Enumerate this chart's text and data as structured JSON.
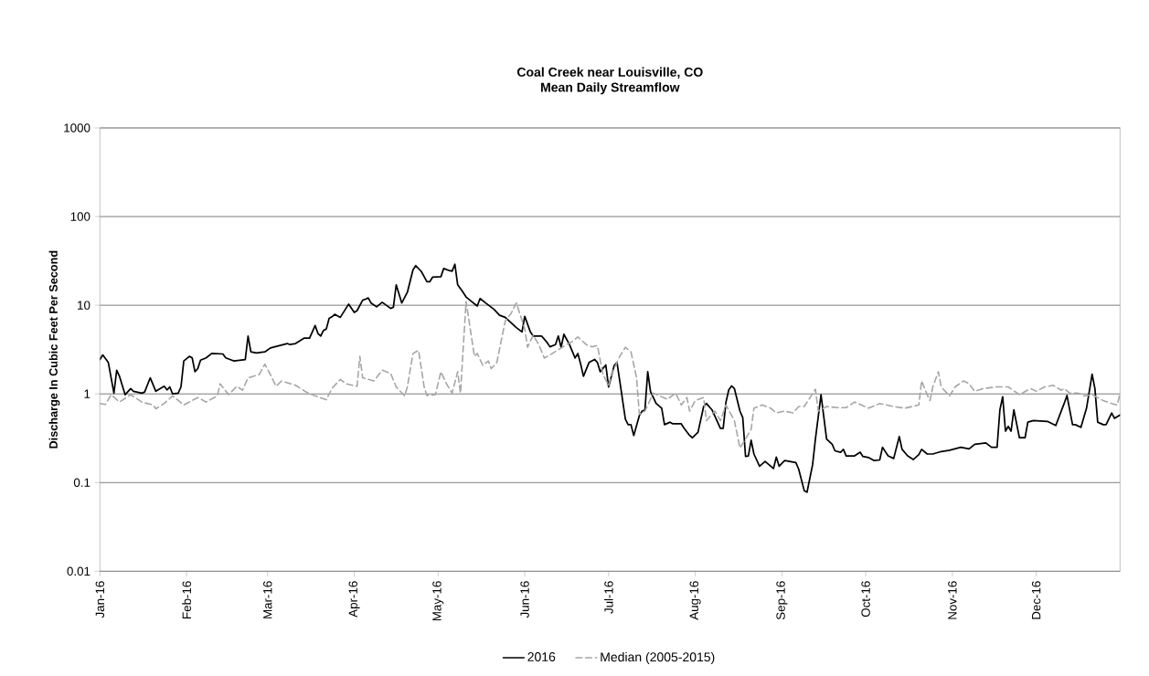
{
  "chart_data": {
    "type": "line",
    "title": "Coal Creek near Louisville, CO\nMean Daily Streamflow",
    "ylabel": "Discharge In Cubic Feet Per Second",
    "xlim": [
      "2016-01-01",
      "2016-12-31"
    ],
    "xticks": [
      {
        "value": "2016-01-01",
        "label": "Jan-16"
      },
      {
        "value": "2016-02-01",
        "label": "Feb-16"
      },
      {
        "value": "2016-03-01",
        "label": "Mar-16"
      },
      {
        "value": "2016-04-01",
        "label": "Apr-16"
      },
      {
        "value": "2016-05-01",
        "label": "May-16"
      },
      {
        "value": "2016-06-01",
        "label": "Jun-16"
      },
      {
        "value": "2016-07-01",
        "label": "Jul-16"
      },
      {
        "value": "2016-08-01",
        "label": "Aug-16"
      },
      {
        "value": "2016-09-01",
        "label": "Sep-16"
      },
      {
        "value": "2016-10-01",
        "label": "Oct-16"
      },
      {
        "value": "2016-11-01",
        "label": "Nov-16"
      },
      {
        "value": "2016-12-01",
        "label": "Dec-16"
      }
    ],
    "ylim": [
      0.01,
      1000
    ],
    "yticks": [
      0.01,
      0.1,
      1,
      10,
      100,
      1000
    ],
    "log": "y",
    "grid": "y",
    "legend": "bottom",
    "marker": "none",
    "series": [
      {
        "name": "2016",
        "color": "#000000",
        "line_style": "solid",
        "x": [
          "2016-01-01",
          "2016-01-02",
          "2016-01-04",
          "2016-01-06",
          "2016-01-07",
          "2016-01-08",
          "2016-01-10",
          "2016-01-12",
          "2016-01-13",
          "2016-01-16",
          "2016-01-17",
          "2016-01-19",
          "2016-01-21",
          "2016-01-24",
          "2016-01-25",
          "2016-01-26",
          "2016-01-27",
          "2016-01-29",
          "2016-01-30",
          "2016-01-31",
          "2016-02-02",
          "2016-02-03",
          "2016-02-04",
          "2016-02-05",
          "2016-02-06",
          "2016-02-08",
          "2016-02-10",
          "2016-02-14",
          "2016-02-15",
          "2016-02-18",
          "2016-02-22",
          "2016-02-23",
          "2016-02-24",
          "2016-02-26",
          "2016-02-29",
          "2016-03-02",
          "2016-03-08",
          "2016-03-09",
          "2016-03-11",
          "2016-03-14",
          "2016-03-16",
          "2016-03-18",
          "2016-03-19",
          "2016-03-20",
          "2016-03-21",
          "2016-03-22",
          "2016-03-23",
          "2016-03-24",
          "2016-03-25",
          "2016-03-27",
          "2016-03-30",
          "2016-04-01",
          "2016-04-02",
          "2016-04-04",
          "2016-04-05",
          "2016-04-06",
          "2016-04-07",
          "2016-04-09",
          "2016-04-11",
          "2016-04-14",
          "2016-04-15",
          "2016-04-16",
          "2016-04-18",
          "2016-04-20",
          "2016-04-22",
          "2016-04-23",
          "2016-04-25",
          "2016-04-27",
          "2016-04-28",
          "2016-04-29",
          "2016-05-02",
          "2016-05-03",
          "2016-05-05",
          "2016-05-06",
          "2016-05-07",
          "2016-05-08",
          "2016-05-10",
          "2016-05-11",
          "2016-05-13",
          "2016-05-15",
          "2016-05-16",
          "2016-05-18",
          "2016-05-21",
          "2016-05-23",
          "2016-05-25",
          "2016-05-29",
          "2016-05-31",
          "2016-06-01",
          "2016-06-03",
          "2016-06-04",
          "2016-06-07",
          "2016-06-09",
          "2016-06-10",
          "2016-06-12",
          "2016-06-13",
          "2016-06-14",
          "2016-06-15",
          "2016-06-17",
          "2016-06-19",
          "2016-06-20",
          "2016-06-21",
          "2016-06-22",
          "2016-06-24",
          "2016-06-26",
          "2016-06-27",
          "2016-06-28",
          "2016-06-30",
          "2016-07-01",
          "2016-07-03",
          "2016-07-04",
          "2016-07-05",
          "2016-07-07",
          "2016-07-08",
          "2016-07-09",
          "2016-07-10",
          "2016-07-12",
          "2016-07-13",
          "2016-07-14",
          "2016-07-15",
          "2016-07-16",
          "2016-07-18",
          "2016-07-20",
          "2016-07-21",
          "2016-07-23",
          "2016-07-24",
          "2016-07-27",
          "2016-07-28",
          "2016-07-30",
          "2016-07-31",
          "2016-08-02",
          "2016-08-04",
          "2016-08-05",
          "2016-08-07",
          "2016-08-10",
          "2016-08-11",
          "2016-08-12",
          "2016-08-13",
          "2016-08-14",
          "2016-08-15",
          "2016-08-17",
          "2016-08-18",
          "2016-08-19",
          "2016-08-20",
          "2016-08-21",
          "2016-08-22",
          "2016-08-24",
          "2016-08-26",
          "2016-08-29",
          "2016-08-30",
          "2016-08-31",
          "2016-09-02",
          "2016-09-06",
          "2016-09-07",
          "2016-09-09",
          "2016-09-10",
          "2016-09-12",
          "2016-09-13",
          "2016-09-15",
          "2016-09-17",
          "2016-09-19",
          "2016-09-20",
          "2016-09-22",
          "2016-09-23",
          "2016-09-24",
          "2016-09-27",
          "2016-09-29",
          "2016-09-30",
          "2016-10-02",
          "2016-10-04",
          "2016-10-06",
          "2016-10-07",
          "2016-10-09",
          "2016-10-11",
          "2016-10-13",
          "2016-10-14",
          "2016-10-16",
          "2016-10-18",
          "2016-10-20",
          "2016-10-21",
          "2016-10-23",
          "2016-10-25",
          "2016-10-28",
          "2016-10-31",
          "2016-11-04",
          "2016-11-07",
          "2016-11-09",
          "2016-11-13",
          "2016-11-15",
          "2016-11-17",
          "2016-11-18",
          "2016-11-19",
          "2016-11-20",
          "2016-11-21",
          "2016-11-22",
          "2016-11-23",
          "2016-11-25",
          "2016-11-27",
          "2016-11-28",
          "2016-11-30",
          "2016-12-05",
          "2016-12-08",
          "2016-12-11",
          "2016-12-12",
          "2016-12-14",
          "2016-12-15",
          "2016-12-17",
          "2016-12-19",
          "2016-12-21",
          "2016-12-22",
          "2016-12-23",
          "2016-12-25",
          "2016-12-26",
          "2016-12-28",
          "2016-12-29",
          "2016-12-31"
        ],
        "values": [
          2.44,
          2.75,
          2.26,
          1.02,
          1.85,
          1.58,
          0.98,
          1.15,
          1.07,
          1.02,
          1.05,
          1.52,
          1.07,
          1.22,
          1.11,
          1.2,
          1.0,
          1.02,
          1.2,
          2.35,
          2.65,
          2.55,
          1.78,
          1.93,
          2.4,
          2.55,
          2.86,
          2.82,
          2.55,
          2.35,
          2.44,
          4.5,
          2.98,
          2.9,
          2.98,
          3.3,
          3.7,
          3.6,
          3.7,
          4.25,
          4.25,
          5.9,
          4.8,
          4.5,
          5.2,
          5.4,
          7.1,
          7.4,
          7.9,
          7.3,
          10.3,
          8.3,
          8.7,
          11.4,
          11.7,
          12.1,
          10.6,
          9.6,
          10.8,
          9.2,
          9.5,
          17,
          10.6,
          14,
          25,
          28,
          24,
          18.4,
          18.4,
          20.7,
          21,
          26,
          24.6,
          24.2,
          29,
          17,
          13.9,
          12.4,
          11,
          9.8,
          11.9,
          10.6,
          9.0,
          7.7,
          7.3,
          5.6,
          5.0,
          7.5,
          5.0,
          4.5,
          4.5,
          3.8,
          3.4,
          3.6,
          4.5,
          3.35,
          4.7,
          3.6,
          2.54,
          2.86,
          2.17,
          1.58,
          2.26,
          2.45,
          2.26,
          1.78,
          2.12,
          1.2,
          2.09,
          2.26,
          1.4,
          0.52,
          0.45,
          0.45,
          0.34,
          0.57,
          0.64,
          0.66,
          1.78,
          1.06,
          0.78,
          0.69,
          0.45,
          0.48,
          0.46,
          0.46,
          0.41,
          0.34,
          0.32,
          0.37,
          0.72,
          0.78,
          0.66,
          0.41,
          0.41,
          0.81,
          1.11,
          1.23,
          1.15,
          0.64,
          0.54,
          0.197,
          0.2,
          0.3,
          0.21,
          0.153,
          0.173,
          0.144,
          0.194,
          0.153,
          0.177,
          0.168,
          0.142,
          0.081,
          0.078,
          0.16,
          0.31,
          0.98,
          0.31,
          0.27,
          0.228,
          0.22,
          0.237,
          0.2,
          0.2,
          0.22,
          0.197,
          0.192,
          0.177,
          0.18,
          0.25,
          0.2,
          0.187,
          0.33,
          0.237,
          0.2,
          0.182,
          0.207,
          0.237,
          0.21,
          0.21,
          0.224,
          0.232,
          0.25,
          0.24,
          0.27,
          0.28,
          0.25,
          0.25,
          0.66,
          0.93,
          0.38,
          0.43,
          0.38,
          0.66,
          0.32,
          0.32,
          0.48,
          0.5,
          0.49,
          0.44,
          0.78,
          0.96,
          0.45,
          0.45,
          0.42,
          0.69,
          1.67,
          1.15,
          0.48,
          0.45,
          0.45,
          0.61,
          0.53,
          0.58
        ]
      },
      {
        "name": "Median (2005-2015)",
        "color": "#a6a6a6",
        "line_style": "dashed",
        "x": [
          "2016-01-01",
          "2016-01-03",
          "2016-01-05",
          "2016-01-08",
          "2016-01-12",
          "2016-01-16",
          "2016-01-20",
          "2016-01-21",
          "2016-01-24",
          "2016-01-27",
          "2016-01-31",
          "2016-02-05",
          "2016-02-08",
          "2016-02-12",
          "2016-02-13",
          "2016-02-16",
          "2016-02-19",
          "2016-02-21",
          "2016-02-23",
          "2016-02-27",
          "2016-02-29",
          "2016-03-02",
          "2016-03-04",
          "2016-03-06",
          "2016-03-11",
          "2016-03-15",
          "2016-03-18",
          "2016-03-22",
          "2016-03-24",
          "2016-03-27",
          "2016-03-29",
          "2016-04-02",
          "2016-04-03",
          "2016-04-04",
          "2016-04-08",
          "2016-04-11",
          "2016-04-14",
          "2016-04-16",
          "2016-04-19",
          "2016-04-20",
          "2016-04-22",
          "2016-04-24",
          "2016-04-26",
          "2016-04-27",
          "2016-04-30",
          "2016-05-02",
          "2016-05-04",
          "2016-05-06",
          "2016-05-08",
          "2016-05-09",
          "2016-05-11",
          "2016-05-14",
          "2016-05-15",
          "2016-05-17",
          "2016-05-19",
          "2016-05-20",
          "2016-05-22",
          "2016-05-25",
          "2016-05-27",
          "2016-05-29",
          "2016-06-01",
          "2016-06-02",
          "2016-06-04",
          "2016-06-06",
          "2016-06-08",
          "2016-06-10",
          "2016-06-13",
          "2016-06-16",
          "2016-06-18",
          "2016-06-20",
          "2016-06-23",
          "2016-06-25",
          "2016-06-27",
          "2016-06-29",
          "2016-07-01",
          "2016-07-02",
          "2016-07-05",
          "2016-07-07",
          "2016-07-09",
          "2016-07-11",
          "2016-07-12",
          "2016-07-14",
          "2016-07-17",
          "2016-07-22",
          "2016-07-25",
          "2016-07-27",
          "2016-07-29",
          "2016-07-30",
          "2016-08-01",
          "2016-08-04",
          "2016-08-05",
          "2016-08-08",
          "2016-08-10",
          "2016-08-12",
          "2016-08-15",
          "2016-08-17",
          "2016-08-19",
          "2016-08-21",
          "2016-08-22",
          "2016-08-25",
          "2016-08-28",
          "2016-08-30",
          "2016-09-02",
          "2016-09-05",
          "2016-09-07",
          "2016-09-09",
          "2016-09-13",
          "2016-09-14",
          "2016-09-17",
          "2016-09-21",
          "2016-09-24",
          "2016-09-27",
          "2016-10-02",
          "2016-10-06",
          "2016-10-11",
          "2016-10-15",
          "2016-10-20",
          "2016-10-21",
          "2016-10-23",
          "2016-10-24",
          "2016-10-25",
          "2016-10-27",
          "2016-10-28",
          "2016-10-31",
          "2016-11-02",
          "2016-11-05",
          "2016-11-07",
          "2016-11-09",
          "2016-11-12",
          "2016-11-17",
          "2016-11-21",
          "2016-11-25",
          "2016-11-29",
          "2016-12-01",
          "2016-12-04",
          "2016-12-07",
          "2016-12-10",
          "2016-12-11",
          "2016-12-13",
          "2016-12-16",
          "2016-12-18",
          "2016-12-21",
          "2016-12-25",
          "2016-12-28",
          "2016-12-30",
          "2016-12-31"
        ],
        "values": [
          0.78,
          0.76,
          0.98,
          0.81,
          0.98,
          0.81,
          0.75,
          0.68,
          0.78,
          0.95,
          0.75,
          0.91,
          0.81,
          0.95,
          1.3,
          0.98,
          1.22,
          1.1,
          1.52,
          1.65,
          2.17,
          1.65,
          1.22,
          1.4,
          1.25,
          1.04,
          0.95,
          0.86,
          1.15,
          1.46,
          1.3,
          1.22,
          2.65,
          1.52,
          1.4,
          1.85,
          1.71,
          1.2,
          0.95,
          1.2,
          2.86,
          3.1,
          1.2,
          0.96,
          0.98,
          1.78,
          1.3,
          1.02,
          1.78,
          1.02,
          11,
          2.65,
          2.86,
          2.09,
          2.35,
          1.93,
          2.26,
          6.6,
          8.0,
          10.6,
          5.4,
          3.36,
          4.6,
          3.6,
          2.54,
          2.75,
          3.15,
          3.6,
          3.9,
          4.4,
          3.6,
          3.4,
          3.5,
          1.65,
          1.25,
          1.65,
          2.65,
          3.36,
          2.98,
          1.52,
          0.59,
          0.64,
          1.02,
          0.87,
          1.02,
          0.75,
          0.91,
          0.64,
          0.84,
          0.91,
          0.5,
          0.64,
          0.5,
          0.75,
          0.5,
          0.246,
          0.31,
          0.4,
          0.69,
          0.75,
          0.69,
          0.61,
          0.64,
          0.61,
          0.72,
          0.72,
          1.13,
          0.64,
          0.72,
          0.7,
          0.7,
          0.81,
          0.69,
          0.78,
          0.72,
          0.69,
          0.75,
          1.4,
          0.98,
          0.84,
          1.2,
          1.78,
          1.2,
          0.95,
          1.2,
          1.4,
          1.3,
          1.07,
          1.15,
          1.2,
          1.2,
          0.98,
          1.15,
          1.07,
          1.2,
          1.25,
          1.1,
          1.15,
          1.02,
          1.02,
          0.95,
          0.98,
          0.84,
          0.78,
          0.75,
          1.02
        ]
      }
    ]
  }
}
